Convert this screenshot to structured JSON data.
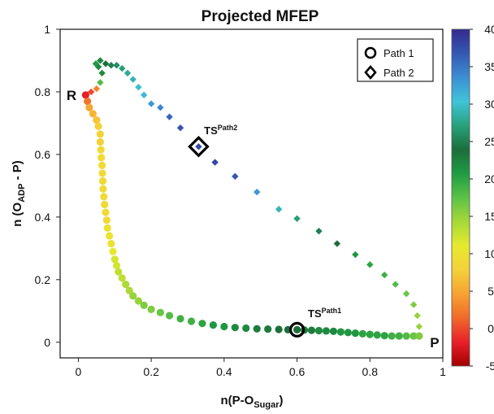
{
  "chart_data": {
    "type": "scatter",
    "title": "Projected MFEP",
    "xlabel": {
      "main": "n(P-O",
      "sub": "Sugar",
      "close": ")"
    },
    "ylabel": {
      "main": "n (O",
      "sub": "ADP",
      "rest": " - P)"
    },
    "xlim": [
      -0.05,
      1.0
    ],
    "ylim": [
      -0.05,
      1.0
    ],
    "xticks": [
      "0",
      "0.2",
      "0.4",
      "0.6",
      "0.8",
      "1"
    ],
    "yticks": [
      "0",
      "0.2",
      "0.4",
      "0.6",
      "0.8",
      "1"
    ],
    "colorbar": {
      "range": [
        -5,
        40
      ],
      "ticks": [
        "-5",
        "0",
        "5",
        "10",
        "15",
        "20",
        "25",
        "30",
        "35",
        "40"
      ],
      "colors": [
        "#a50000",
        "#e8202a",
        "#f06a2a",
        "#f6a231",
        "#f4d13a",
        "#e6ea2e",
        "#a6d838",
        "#5cc247",
        "#1f9c42",
        "#1c6d3c",
        "#27a27c",
        "#3fc4d8",
        "#3c8fd3",
        "#3458b3",
        "#352a8e"
      ]
    },
    "legend": {
      "placement": "top-right",
      "items": [
        {
          "marker": "circle",
          "label": "Path 1"
        },
        {
          "marker": "diamond",
          "label": "Path 2"
        }
      ]
    },
    "annotations": [
      {
        "text": "R",
        "x": -0.005,
        "y": 0.79
      },
      {
        "text": "P",
        "x": 0.965,
        "y": 0.0
      },
      {
        "text": "TS",
        "sup": "Path2",
        "x": 0.345,
        "y": 0.665
      },
      {
        "text": "TS",
        "sup": "Path1",
        "x": 0.63,
        "y": 0.08
      }
    ],
    "series": [
      {
        "name": "Path 1",
        "marker": "circle",
        "points": [
          [
            0.02,
            0.79,
            -2
          ],
          [
            0.025,
            0.77,
            2
          ],
          [
            0.03,
            0.75,
            5
          ],
          [
            0.04,
            0.73,
            6
          ],
          [
            0.05,
            0.71,
            7
          ],
          [
            0.055,
            0.69,
            8
          ],
          [
            0.06,
            0.665,
            8
          ],
          [
            0.06,
            0.64,
            8
          ],
          [
            0.062,
            0.615,
            9
          ],
          [
            0.063,
            0.59,
            9
          ],
          [
            0.065,
            0.565,
            9
          ],
          [
            0.066,
            0.54,
            9
          ],
          [
            0.067,
            0.515,
            9
          ],
          [
            0.068,
            0.49,
            9
          ],
          [
            0.07,
            0.465,
            9
          ],
          [
            0.072,
            0.44,
            9
          ],
          [
            0.075,
            0.415,
            9
          ],
          [
            0.078,
            0.39,
            9
          ],
          [
            0.08,
            0.365,
            10
          ],
          [
            0.085,
            0.34,
            10
          ],
          [
            0.09,
            0.315,
            10
          ],
          [
            0.095,
            0.29,
            11
          ],
          [
            0.1,
            0.265,
            12
          ],
          [
            0.105,
            0.245,
            12
          ],
          [
            0.11,
            0.225,
            13
          ],
          [
            0.12,
            0.205,
            13
          ],
          [
            0.13,
            0.185,
            14
          ],
          [
            0.14,
            0.165,
            14
          ],
          [
            0.15,
            0.148,
            15
          ],
          [
            0.165,
            0.132,
            15
          ],
          [
            0.18,
            0.118,
            16
          ],
          [
            0.2,
            0.105,
            16
          ],
          [
            0.225,
            0.095,
            17
          ],
          [
            0.25,
            0.085,
            18
          ],
          [
            0.28,
            0.075,
            19
          ],
          [
            0.31,
            0.067,
            19
          ],
          [
            0.34,
            0.06,
            20
          ],
          [
            0.37,
            0.055,
            21
          ],
          [
            0.4,
            0.05,
            21
          ],
          [
            0.43,
            0.047,
            22
          ],
          [
            0.46,
            0.045,
            22
          ],
          [
            0.49,
            0.043,
            23
          ],
          [
            0.52,
            0.042,
            23
          ],
          [
            0.55,
            0.041,
            24
          ],
          [
            0.575,
            0.04,
            24
          ],
          [
            0.6,
            0.04,
            24
          ],
          [
            0.62,
            0.039,
            23
          ],
          [
            0.64,
            0.038,
            23
          ],
          [
            0.66,
            0.037,
            22
          ],
          [
            0.68,
            0.036,
            22
          ],
          [
            0.7,
            0.035,
            22
          ],
          [
            0.72,
            0.033,
            21
          ],
          [
            0.74,
            0.031,
            21
          ],
          [
            0.76,
            0.029,
            21
          ],
          [
            0.78,
            0.027,
            20
          ],
          [
            0.8,
            0.025,
            20
          ],
          [
            0.82,
            0.023,
            20
          ],
          [
            0.84,
            0.021,
            20
          ],
          [
            0.86,
            0.02,
            19
          ],
          [
            0.88,
            0.02,
            19
          ],
          [
            0.9,
            0.02,
            18
          ],
          [
            0.92,
            0.02,
            17
          ],
          [
            0.935,
            0.02,
            16
          ]
        ]
      },
      {
        "name": "Path 2",
        "marker": "diamond",
        "points": [
          [
            0.02,
            0.79,
            -2
          ],
          [
            0.035,
            0.8,
            0
          ],
          [
            0.05,
            0.81,
            3
          ],
          [
            0.06,
            0.83,
            18
          ],
          [
            0.065,
            0.86,
            22
          ],
          [
            0.055,
            0.88,
            22
          ],
          [
            0.048,
            0.89,
            21
          ],
          [
            0.06,
            0.9,
            22
          ],
          [
            0.075,
            0.89,
            24
          ],
          [
            0.09,
            0.885,
            25
          ],
          [
            0.105,
            0.885,
            26
          ],
          [
            0.12,
            0.875,
            27
          ],
          [
            0.135,
            0.86,
            28
          ],
          [
            0.15,
            0.84,
            29
          ],
          [
            0.165,
            0.815,
            30
          ],
          [
            0.18,
            0.79,
            31
          ],
          [
            0.2,
            0.762,
            33
          ],
          [
            0.225,
            0.75,
            34
          ],
          [
            0.25,
            0.72,
            36
          ],
          [
            0.28,
            0.685,
            37
          ],
          [
            0.33,
            0.625,
            38
          ],
          [
            0.375,
            0.575,
            38
          ],
          [
            0.43,
            0.53,
            37
          ],
          [
            0.49,
            0.48,
            33
          ],
          [
            0.55,
            0.425,
            29
          ],
          [
            0.6,
            0.395,
            27
          ],
          [
            0.66,
            0.355,
            25
          ],
          [
            0.71,
            0.315,
            24
          ],
          [
            0.76,
            0.28,
            21
          ],
          [
            0.8,
            0.248,
            20
          ],
          [
            0.84,
            0.215,
            19
          ],
          [
            0.87,
            0.185,
            18
          ],
          [
            0.9,
            0.155,
            17
          ],
          [
            0.92,
            0.12,
            16
          ],
          [
            0.93,
            0.085,
            15
          ],
          [
            0.935,
            0.05,
            15
          ],
          [
            0.935,
            0.02,
            16
          ]
        ]
      }
    ],
    "transition_states": [
      {
        "label": "TS Path1",
        "marker": "circle",
        "x": 0.6,
        "y": 0.04
      },
      {
        "label": "TS Path2",
        "marker": "diamond",
        "x": 0.33,
        "y": 0.625
      }
    ]
  }
}
